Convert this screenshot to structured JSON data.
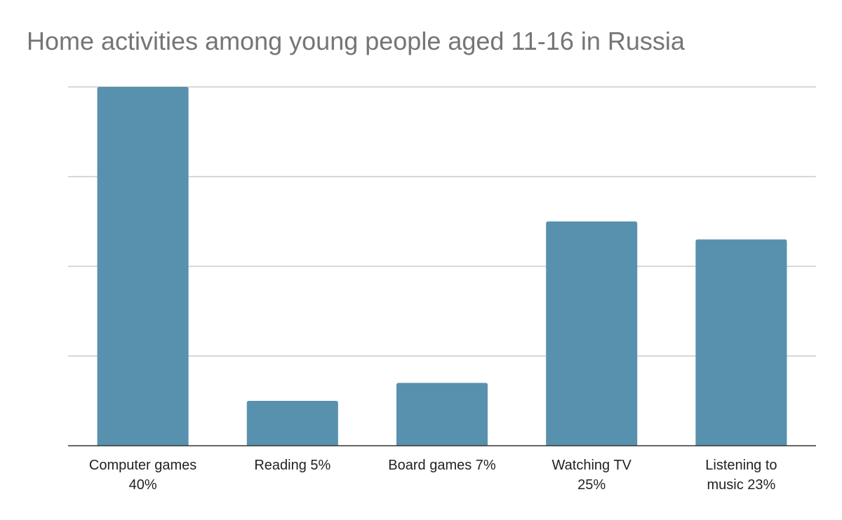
{
  "chart_data": {
    "type": "bar",
    "title": "Home activities among young people aged 11-16 in Russia",
    "categories": [
      [
        "Computer games",
        "40%"
      ],
      [
        "Reading 5%"
      ],
      [
        "Board games 7%"
      ],
      [
        "Watching TV",
        "25%"
      ],
      [
        "Listening to",
        "music 23%"
      ]
    ],
    "values": [
      40,
      5,
      7,
      25,
      23
    ],
    "ylim": [
      0,
      40
    ],
    "ytick_step": 10,
    "grid": true,
    "bar_color": "#5891ad"
  }
}
